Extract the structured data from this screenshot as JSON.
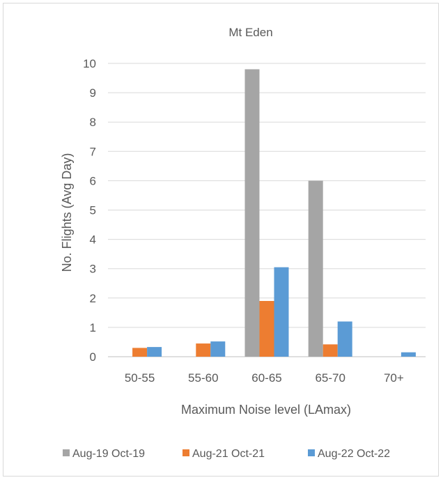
{
  "chart_data": {
    "type": "bar",
    "title": "Mt Eden",
    "xlabel": "Maximum Noise level (LAmax)",
    "ylabel": "No. Flights (Avg Day)",
    "categories": [
      "50-55",
      "55-60",
      "60-65",
      "65-70",
      "70+"
    ],
    "ylim": [
      0,
      10
    ],
    "yticks": [
      0,
      1,
      2,
      3,
      4,
      5,
      6,
      7,
      8,
      9,
      10
    ],
    "grid": true,
    "legend_position": "bottom",
    "series": [
      {
        "name": "Aug-19 Oct-19",
        "color": "#a5a5a5",
        "values": [
          0,
          0,
          9.8,
          6.0,
          0
        ]
      },
      {
        "name": "Aug-21 Oct-21",
        "color": "#ed7d31",
        "values": [
          0.3,
          0.45,
          1.9,
          0.42,
          0
        ]
      },
      {
        "name": "Aug-22 Oct-22",
        "color": "#5b9bd5",
        "values": [
          0.33,
          0.52,
          3.05,
          1.2,
          0.15
        ]
      }
    ]
  }
}
